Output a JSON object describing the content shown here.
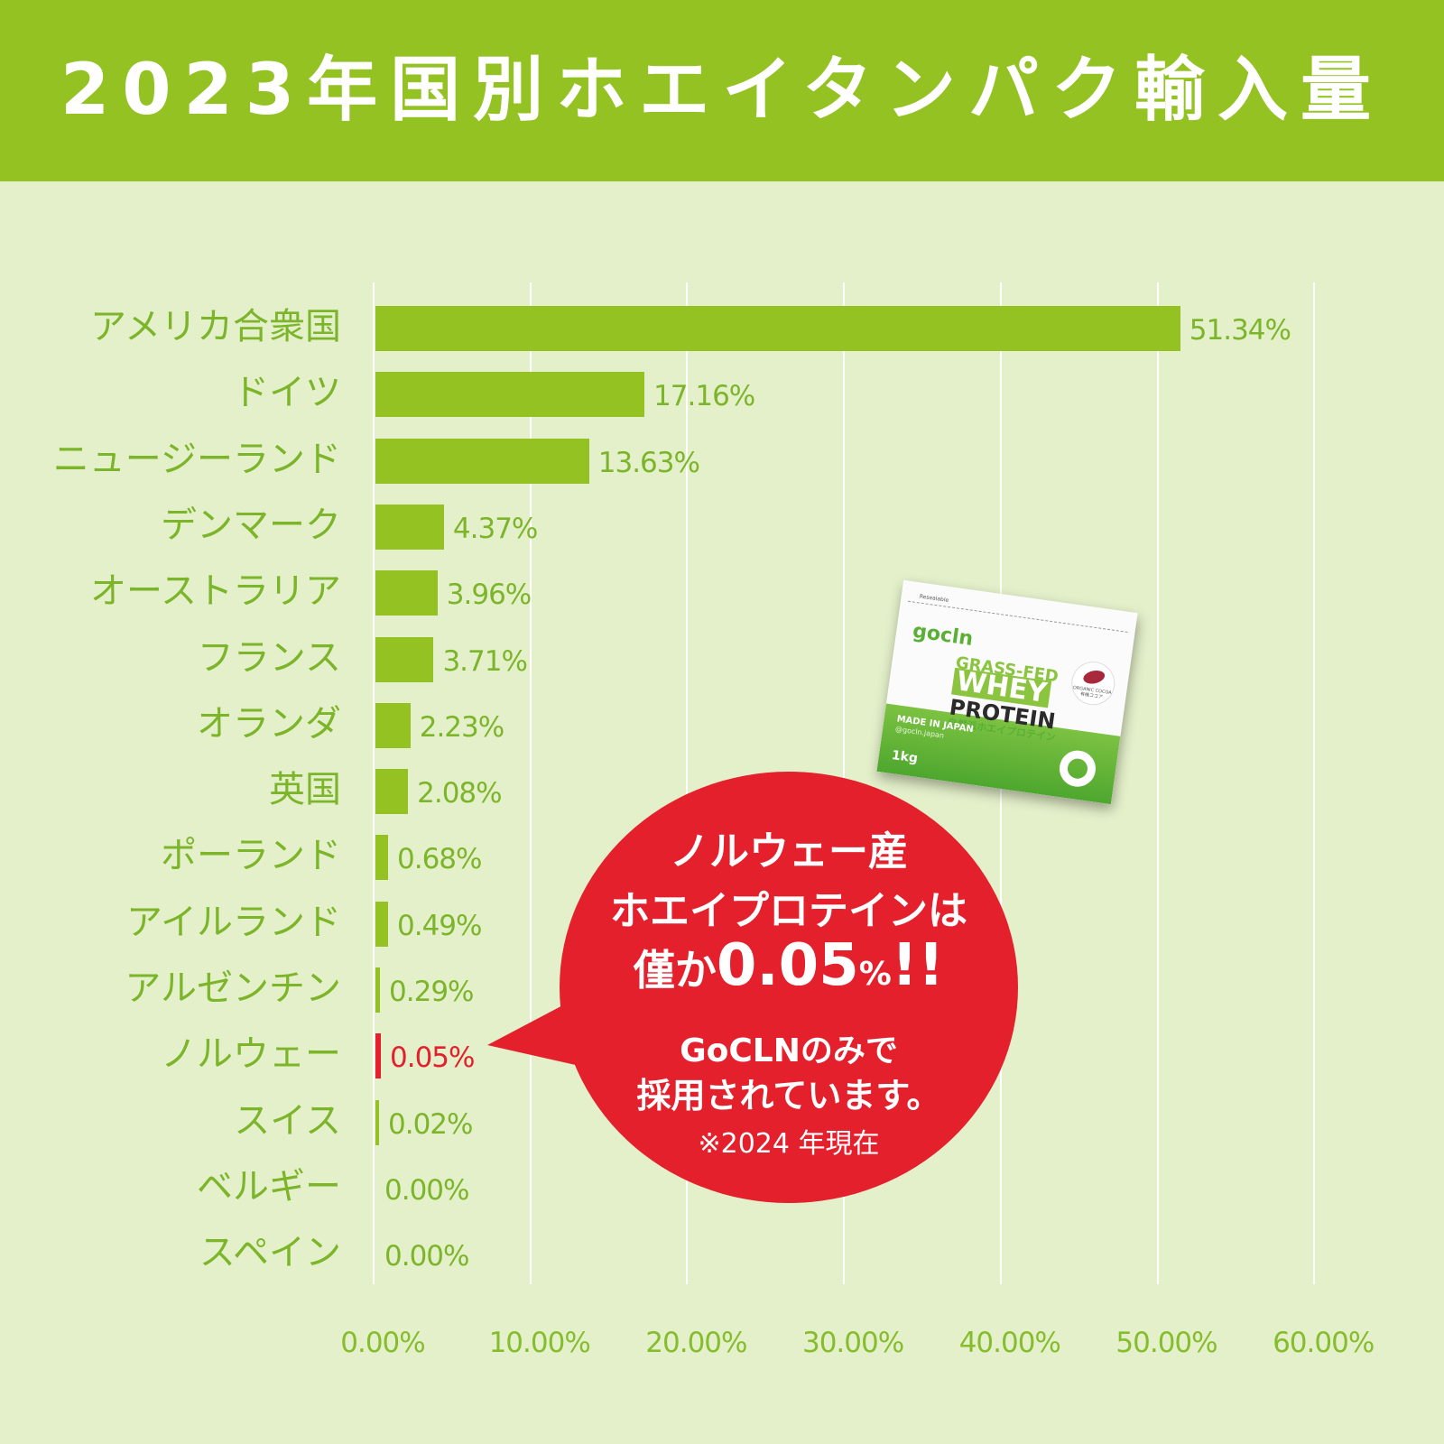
{
  "title": "2023年国別ホエイタンパク輸入量",
  "colors": {
    "header_bg": "#93c222",
    "page_bg": "#e4f0ca",
    "bar": "#93c222",
    "highlight": "#e3202c",
    "label_text": "#7cb52a"
  },
  "chart_data": {
    "type": "bar",
    "orientation": "horizontal",
    "title": "2023年国別ホエイタンパク輸入量",
    "xlabel": "",
    "ylabel": "",
    "xlim": [
      0,
      60
    ],
    "grid": true,
    "categories": [
      "アメリカ合衆国",
      "ドイツ",
      "ニュージーランド",
      "デンマーク",
      "オーストラリア",
      "フランス",
      "オランダ",
      "英国",
      "ポーランド",
      "アイルランド",
      "アルゼンチン",
      "ノルウェー",
      "スイス",
      "ベルギー",
      "スペイン"
    ],
    "values": [
      51.34,
      17.16,
      13.63,
      4.37,
      3.96,
      3.71,
      2.23,
      2.08,
      0.68,
      0.49,
      0.29,
      0.05,
      0.02,
      0.0,
      0.0
    ],
    "value_labels": [
      "51.34%",
      "17.16%",
      "13.63%",
      "4.37%",
      "3.96%",
      "3.71%",
      "2.23%",
      "2.08%",
      "0.68%",
      "0.49%",
      "0.29%",
      "0.05%",
      "0.02%",
      "0.00%",
      "0.00%"
    ],
    "highlighted_category": "ノルウェー",
    "x_ticks": [
      "0.00%",
      "10.00%",
      "20.00%",
      "30.00%",
      "40.00%",
      "50.00%",
      "60.00%"
    ],
    "unit": "%"
  },
  "callout": {
    "line1": "ノルウェー産",
    "line2": "ホエイプロテインは",
    "line3_prefix": "僅か",
    "line3_value": "0.05",
    "line3_pct": "%",
    "line3_suffix": "!!",
    "line4": "GoCLNのみで",
    "line5": "採用されています。",
    "note": "※2024 年現在"
  },
  "product": {
    "reseal": "Resealable",
    "brand": "gocln",
    "line1": "GRASS-FED",
    "line2": "WHEY",
    "line3": "PROTEIN",
    "jp_name": "自然派ホエイプロテイン",
    "made_in": "MADE IN JAPAN",
    "handle": "@gocln.japan",
    "weight": "1kg",
    "badge": "ORGANIC COCOA",
    "badge_jp": "有機ココア"
  }
}
